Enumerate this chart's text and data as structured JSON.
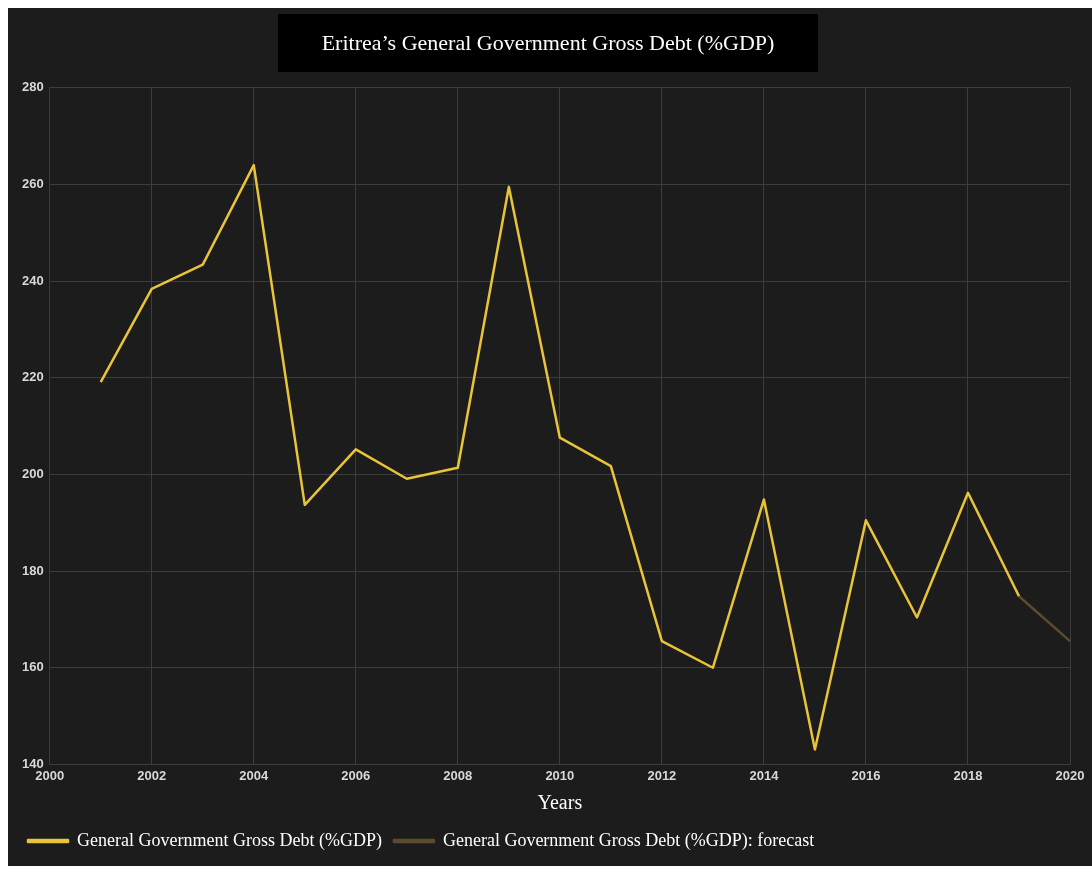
{
  "chart_data": {
    "type": "line",
    "title": "Eritrea’s General Government Gross Debt (%GDP)",
    "xlabel": "Years",
    "xlim": [
      2000,
      2020
    ],
    "xticks": [
      2000,
      2002,
      2004,
      2006,
      2008,
      2010,
      2012,
      2014,
      2016,
      2018,
      2020
    ],
    "ylim": [
      140,
      280
    ],
    "yticks": [
      140,
      160,
      180,
      200,
      220,
      240,
      260,
      280
    ],
    "grid": true,
    "legend": "bottom",
    "marker": "none",
    "line_style": "solid",
    "series": [
      {
        "name": "General Government Gross Debt (%GDP)",
        "color": "#e8c43a",
        "x": [
          2001,
          2002,
          2003,
          2004,
          2005,
          2006,
          2007,
          2008,
          2009,
          2010,
          2011,
          2012,
          2013,
          2014,
          2015,
          2016,
          2017,
          2018,
          2019
        ],
        "values": [
          219.1,
          238.4,
          243.4,
          264,
          193.7,
          205.2,
          199.1,
          201.4,
          259.5,
          207.6,
          201.7,
          165.5,
          160,
          194.8,
          143.1,
          190.5,
          170.4,
          196.2,
          174.8
        ]
      },
      {
        "name": "General Government Gross Debt (%GDP): forecast",
        "color": "#5a4c2c",
        "x": [
          2019,
          2020
        ],
        "values": [
          174.8,
          165.5
        ]
      }
    ]
  }
}
